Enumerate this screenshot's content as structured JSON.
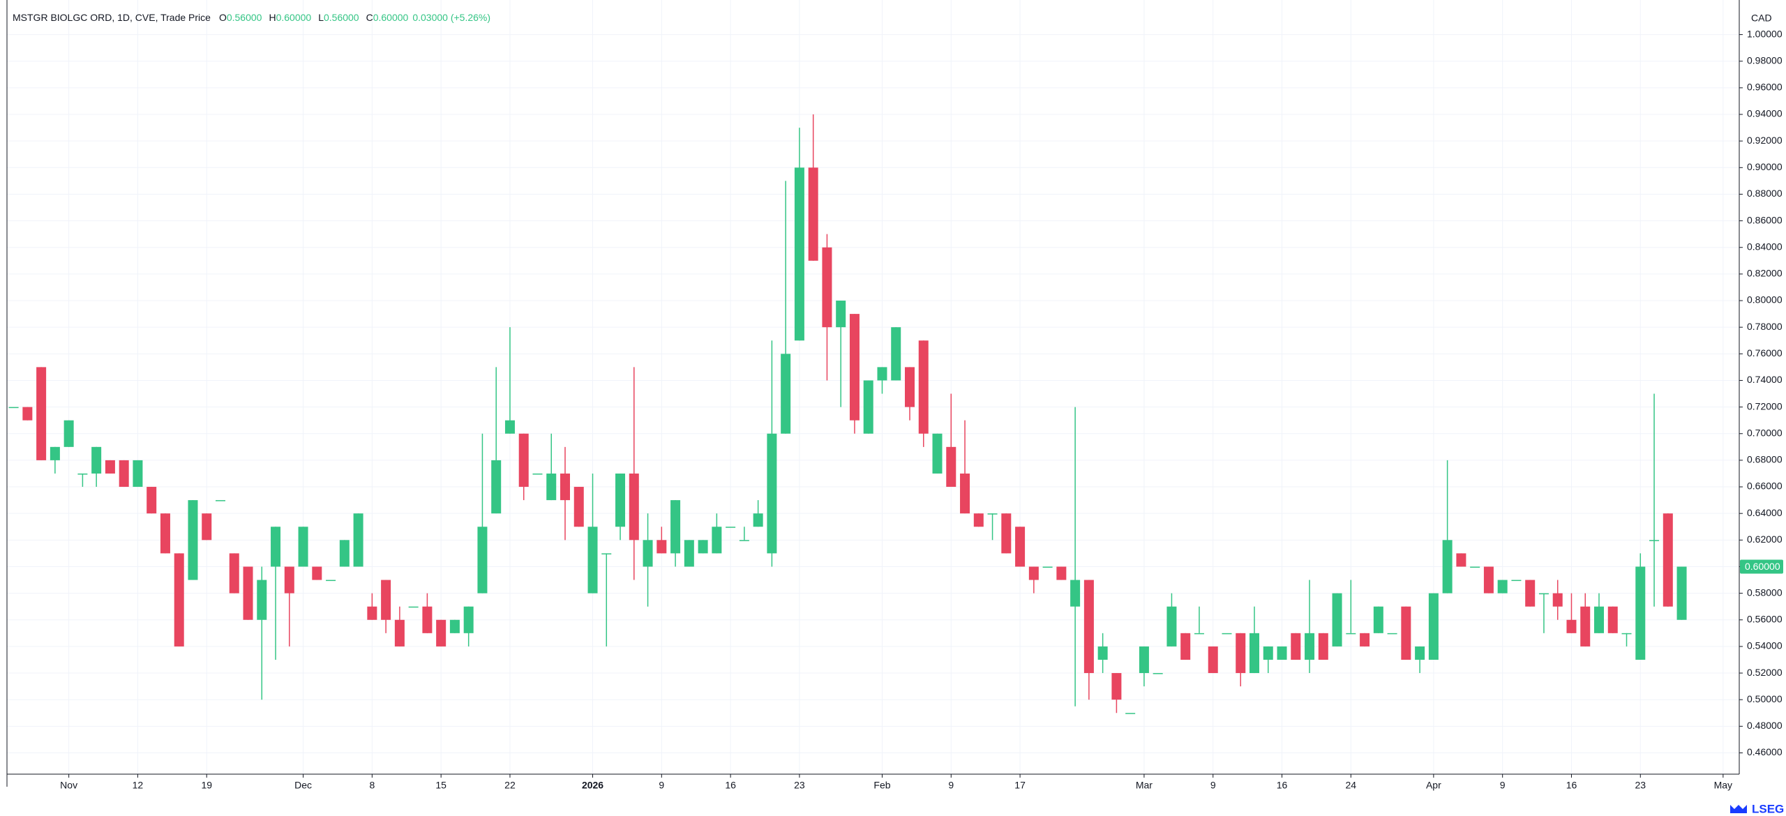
{
  "chart_data": {
    "type": "candlestick",
    "title": "MSTGR BIOLGC ORD, 1D, CVE, Trade Price",
    "ohlc_readout": [
      {
        "key": "O",
        "label": "0.56000"
      },
      {
        "key": "H",
        "label": "0.60000"
      },
      {
        "key": "L",
        "label": "0.56000"
      },
      {
        "key": "C",
        "label": "0.60000"
      }
    ],
    "change": "0.03000 (+5.26%)",
    "currency": "CAD",
    "logo": "LSEG",
    "up_color": "#34c585",
    "down_color": "#e8455f",
    "grid": true,
    "categories": [
      null,
      null,
      null,
      null,
      "Nov",
      null,
      null,
      null,
      null,
      "12",
      null,
      null,
      null,
      null,
      "19",
      null,
      null,
      null,
      null,
      null,
      null,
      "Dec",
      null,
      null,
      null,
      null,
      "8",
      null,
      null,
      null,
      null,
      "15",
      null,
      null,
      null,
      null,
      "22",
      null,
      null,
      null,
      null,
      null,
      "2026",
      null,
      null,
      null,
      null,
      "9",
      null,
      null,
      null,
      null,
      "16",
      null,
      null,
      null,
      null,
      "23",
      null,
      null,
      null,
      null,
      null,
      "Feb",
      null,
      null,
      null,
      null,
      "9",
      null,
      null,
      null,
      null,
      "17",
      null,
      null,
      null,
      null,
      null,
      null,
      null,
      null,
      "Mar",
      null,
      null,
      null,
      null,
      "9",
      null,
      null,
      null,
      null,
      "16",
      null,
      null,
      null,
      null,
      "24",
      null,
      null,
      null,
      null,
      null,
      "Apr",
      null,
      null,
      null,
      null,
      "9",
      null,
      null,
      null,
      null,
      "16",
      null,
      null,
      null,
      null,
      "23",
      null,
      null,
      null,
      null,
      null,
      "May"
    ],
    "open": [
      0.72,
      0.72,
      0.75,
      0.68,
      0.69,
      0.67,
      0.67,
      0.68,
      0.68,
      0.66,
      0.66,
      0.64,
      0.61,
      0.59,
      0.64,
      0.65,
      0.61,
      0.6,
      0.56,
      0.6,
      0.6,
      0.6,
      0.6,
      0.59,
      0.6,
      0.6,
      0.57,
      0.59,
      0.56,
      0.57,
      0.57,
      0.56,
      0.55,
      0.55,
      0.58,
      0.64,
      0.7,
      0.7,
      0.67,
      0.65,
      0.67,
      0.66,
      0.58,
      0.61,
      0.63,
      0.67,
      0.6,
      0.62,
      0.61,
      0.6,
      0.61,
      0.61,
      0.63,
      0.62,
      0.63,
      0.61,
      0.7,
      0.77,
      0.9,
      0.84,
      0.78,
      0.79,
      0.7,
      0.74,
      0.74,
      0.75,
      0.77,
      0.67,
      0.69,
      0.67,
      0.64,
      0.64,
      0.64,
      0.63,
      0.6,
      0.6,
      0.6,
      0.57,
      0.59,
      0.53,
      0.52,
      0.49,
      0.52,
      0.52,
      0.54,
      0.55,
      0.55,
      0.54,
      0.55,
      0.55,
      0.52,
      0.53,
      0.53,
      0.55,
      0.53,
      0.55,
      0.54,
      0.55,
      0.55,
      0.55,
      0.55,
      0.57,
      0.53,
      0.53,
      0.58,
      0.61,
      0.6,
      0.6,
      0.58,
      0.59,
      0.59,
      0.58,
      0.58,
      0.56,
      0.57,
      0.55,
      0.57,
      0.55,
      0.53,
      0.62,
      0.64,
      0.56,
      null,
      null,
      null
    ],
    "high": [
      0.72,
      0.72,
      0.75,
      0.69,
      0.71,
      0.67,
      0.69,
      0.68,
      0.68,
      0.68,
      0.66,
      0.64,
      0.61,
      0.65,
      0.64,
      0.65,
      0.61,
      0.6,
      0.6,
      0.63,
      0.6,
      0.63,
      0.6,
      0.59,
      0.62,
      0.64,
      0.58,
      0.59,
      0.57,
      0.57,
      0.58,
      0.56,
      0.56,
      0.57,
      0.7,
      0.75,
      0.78,
      0.7,
      0.67,
      0.7,
      0.69,
      0.66,
      0.67,
      0.61,
      0.67,
      0.75,
      0.64,
      0.63,
      0.65,
      0.62,
      0.62,
      0.64,
      0.63,
      0.63,
      0.65,
      0.77,
      0.89,
      0.93,
      0.94,
      0.85,
      0.8,
      0.79,
      0.74,
      0.75,
      0.78,
      0.75,
      0.77,
      0.7,
      0.73,
      0.71,
      0.64,
      0.64,
      0.64,
      0.63,
      0.6,
      0.6,
      0.6,
      0.72,
      0.59,
      0.55,
      0.52,
      0.49,
      0.54,
      0.52,
      0.58,
      0.55,
      0.57,
      0.54,
      0.55,
      0.55,
      0.57,
      0.54,
      0.54,
      0.55,
      0.59,
      0.55,
      0.58,
      0.59,
      0.55,
      0.57,
      0.55,
      0.57,
      0.54,
      0.58,
      0.68,
      0.61,
      0.6,
      0.6,
      0.59,
      0.59,
      0.59,
      0.58,
      0.59,
      0.58,
      0.58,
      0.58,
      0.57,
      0.55,
      0.61,
      0.73,
      0.64,
      0.6,
      null,
      null,
      null
    ],
    "low": [
      0.72,
      0.71,
      0.68,
      0.67,
      0.69,
      0.66,
      0.66,
      0.67,
      0.66,
      0.66,
      0.64,
      0.61,
      0.54,
      0.59,
      0.62,
      0.65,
      0.58,
      0.56,
      0.5,
      0.53,
      0.54,
      0.6,
      0.59,
      0.59,
      0.6,
      0.6,
      0.56,
      0.55,
      0.54,
      0.57,
      0.55,
      0.54,
      0.55,
      0.54,
      0.58,
      0.64,
      0.7,
      0.65,
      0.67,
      0.65,
      0.62,
      0.63,
      0.58,
      0.54,
      0.62,
      0.59,
      0.57,
      0.61,
      0.6,
      0.6,
      0.61,
      0.61,
      0.63,
      0.62,
      0.63,
      0.6,
      0.7,
      0.77,
      0.83,
      0.74,
      0.72,
      0.7,
      0.7,
      0.73,
      0.74,
      0.71,
      0.69,
      0.67,
      0.66,
      0.64,
      0.63,
      0.62,
      0.61,
      0.6,
      0.58,
      0.6,
      0.59,
      0.495,
      0.5,
      0.52,
      0.49,
      0.49,
      0.51,
      0.52,
      0.54,
      0.53,
      0.55,
      0.52,
      0.55,
      0.51,
      0.52,
      0.52,
      0.53,
      0.53,
      0.52,
      0.53,
      0.54,
      0.55,
      0.54,
      0.55,
      0.55,
      0.53,
      0.52,
      0.53,
      0.58,
      0.6,
      0.6,
      0.58,
      0.58,
      0.59,
      0.57,
      0.55,
      0.56,
      0.55,
      0.54,
      0.55,
      0.55,
      0.54,
      0.53,
      0.57,
      0.57,
      0.56,
      null,
      null,
      null
    ],
    "close": [
      0.72,
      0.71,
      0.68,
      0.69,
      0.71,
      0.67,
      0.69,
      0.67,
      0.66,
      0.68,
      0.64,
      0.61,
      0.54,
      0.65,
      0.62,
      0.65,
      0.58,
      0.56,
      0.59,
      0.63,
      0.58,
      0.63,
      0.59,
      0.59,
      0.62,
      0.64,
      0.56,
      0.56,
      0.54,
      0.57,
      0.55,
      0.54,
      0.56,
      0.57,
      0.63,
      0.68,
      0.71,
      0.66,
      0.67,
      0.67,
      0.65,
      0.63,
      0.63,
      0.61,
      0.67,
      0.62,
      0.62,
      0.61,
      0.65,
      0.62,
      0.62,
      0.63,
      0.63,
      0.62,
      0.64,
      0.7,
      0.76,
      0.9,
      0.83,
      0.78,
      0.8,
      0.71,
      0.74,
      0.75,
      0.78,
      0.72,
      0.7,
      0.7,
      0.66,
      0.64,
      0.63,
      0.64,
      0.61,
      0.6,
      0.59,
      0.6,
      0.59,
      0.59,
      0.52,
      0.54,
      0.5,
      0.49,
      0.54,
      0.52,
      0.57,
      0.53,
      0.55,
      0.52,
      0.55,
      0.52,
      0.55,
      0.54,
      0.54,
      0.53,
      0.55,
      0.53,
      0.58,
      0.55,
      0.54,
      0.57,
      0.55,
      0.53,
      0.54,
      0.58,
      0.62,
      0.6,
      0.6,
      0.58,
      0.59,
      0.59,
      0.57,
      0.58,
      0.57,
      0.55,
      0.54,
      0.57,
      0.55,
      0.55,
      0.6,
      0.62,
      0.57,
      0.6,
      null,
      null,
      null
    ],
    "ylim": [
      0.444,
      1.026
    ],
    "yticks": [
      {
        "value": 0.46,
        "label": "0.46000"
      },
      {
        "value": 0.48,
        "label": "0.48000"
      },
      {
        "value": 0.5,
        "label": "0.50000"
      },
      {
        "value": 0.52,
        "label": "0.52000"
      },
      {
        "value": 0.54,
        "label": "0.54000"
      },
      {
        "value": 0.56,
        "label": "0.56000"
      },
      {
        "value": 0.58,
        "label": "0.58000"
      },
      {
        "value": 0.6,
        "label": "0.60000"
      },
      {
        "value": 0.62,
        "label": "0.62000"
      },
      {
        "value": 0.64,
        "label": "0.64000"
      },
      {
        "value": 0.66,
        "label": "0.66000"
      },
      {
        "value": 0.68,
        "label": "0.68000"
      },
      {
        "value": 0.7,
        "label": "0.70000"
      },
      {
        "value": 0.72,
        "label": "0.72000"
      },
      {
        "value": 0.74,
        "label": "0.74000"
      },
      {
        "value": 0.76,
        "label": "0.76000"
      },
      {
        "value": 0.78,
        "label": "0.78000"
      },
      {
        "value": 0.8,
        "label": "0.80000"
      },
      {
        "value": 0.82,
        "label": "0.82000"
      },
      {
        "value": 0.84,
        "label": "0.84000"
      },
      {
        "value": 0.86,
        "label": "0.86000"
      },
      {
        "value": 0.88,
        "label": "0.88000"
      },
      {
        "value": 0.9,
        "label": "0.90000"
      },
      {
        "value": 0.92,
        "label": "0.92000"
      },
      {
        "value": 0.94,
        "label": "0.94000"
      },
      {
        "value": 0.96,
        "label": "0.96000"
      },
      {
        "value": 0.98,
        "label": "0.98000"
      },
      {
        "value": 1.0,
        "label": "1.00000"
      }
    ],
    "last_price": {
      "value": 0.6,
      "label": "0.60000"
    }
  }
}
